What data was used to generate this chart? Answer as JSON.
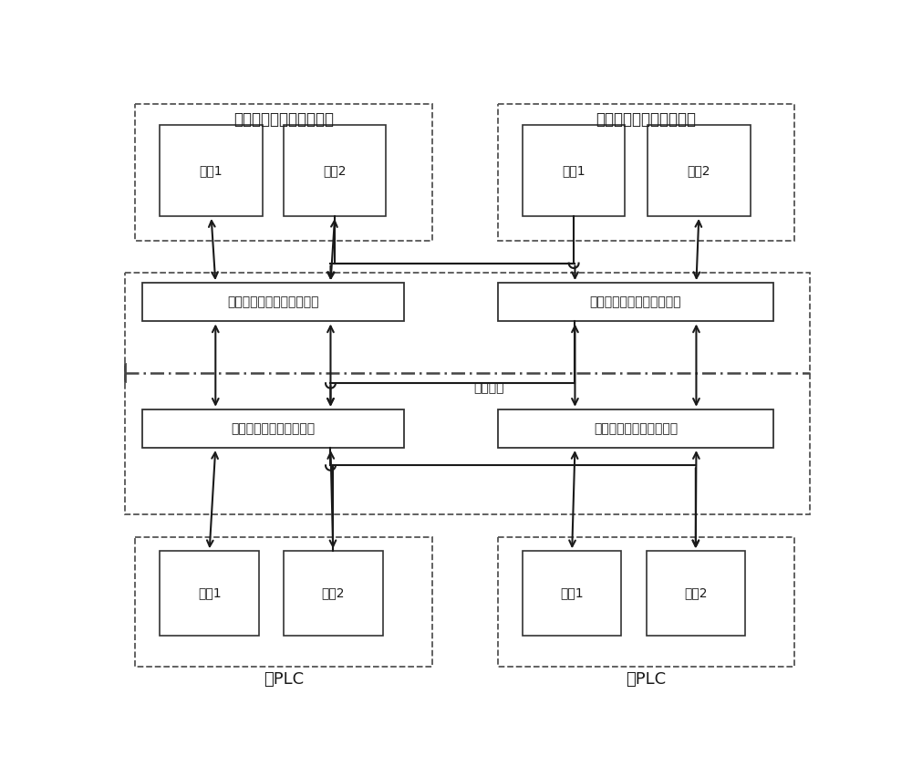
{
  "bg_color": "#ffffff",
  "fig_width": 10.0,
  "fig_height": 8.52,
  "text_color": "#1a1a1a",
  "arrow_color": "#1a1a1a",
  "font_size_title": 12,
  "font_size_box": 10,
  "font_size_label": 12,
  "labels": {
    "pc_main": "远程控制计算机（主机）",
    "pc_backup": "远程控制计算机（备机）",
    "nic1": "网卡1",
    "nic2": "网卡2",
    "remote_switch_main": "远程端以太网交换机（主）",
    "remote_switch_backup": "远程端以太网交换机（备）",
    "optical": "光网转换",
    "front_switch_main": "前端以太网交换机（主）",
    "front_switch_backup": "前端以太网交换机（备）",
    "plc_main": "主PLC",
    "plc_backup": "备PLC"
  }
}
